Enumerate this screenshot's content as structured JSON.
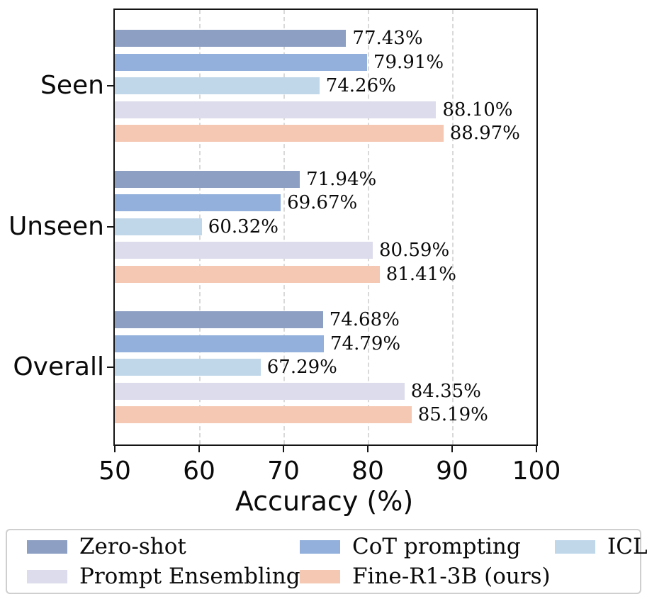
{
  "chart_data": {
    "type": "bar",
    "orientation": "horizontal",
    "xlabel": "Accuracy (%)",
    "xlim": [
      50,
      100
    ],
    "xtick_values": [
      50,
      60,
      70,
      80,
      90,
      100
    ],
    "xtick_labels": [
      "50",
      "60",
      "70",
      "80",
      "90",
      "100"
    ],
    "grid": "vertical dashed gridlines at 60/70/80/90",
    "legend_position": "bottom, 3 columns",
    "categories": [
      "Seen",
      "Unseen",
      "Overall"
    ],
    "series": [
      {
        "name": "Zero-shot",
        "color": "#8d9fc3",
        "values": [
          77.43,
          71.94,
          74.68
        ],
        "labels": [
          "77.43%",
          "71.94%",
          "74.68%"
        ]
      },
      {
        "name": "CoT prompting",
        "color": "#92b0db",
        "values": [
          79.91,
          69.67,
          74.79
        ],
        "labels": [
          "79.91%",
          "69.67%",
          "74.79%"
        ]
      },
      {
        "name": "ICL",
        "color": "#c0d7ea",
        "values": [
          74.26,
          60.32,
          67.29
        ],
        "labels": [
          "74.26%",
          "60.32%",
          "67.29%"
        ]
      },
      {
        "name": "Prompt Ensembling",
        "color": "#dcdcec",
        "values": [
          88.1,
          80.59,
          84.35
        ],
        "labels": [
          "88.10%",
          "80.59%",
          "84.35%"
        ]
      },
      {
        "name": "Fine-R1-3B (ours)",
        "color": "#f4c8b2",
        "values": [
          88.97,
          81.41,
          85.19
        ],
        "labels": [
          "88.97%",
          "81.41%",
          "85.19%"
        ]
      }
    ],
    "colors": {
      "axis_spine": "#141414",
      "gridline": "#d9d9d9",
      "legend_border": "#cfcfcf",
      "background": "#ffffff"
    }
  }
}
